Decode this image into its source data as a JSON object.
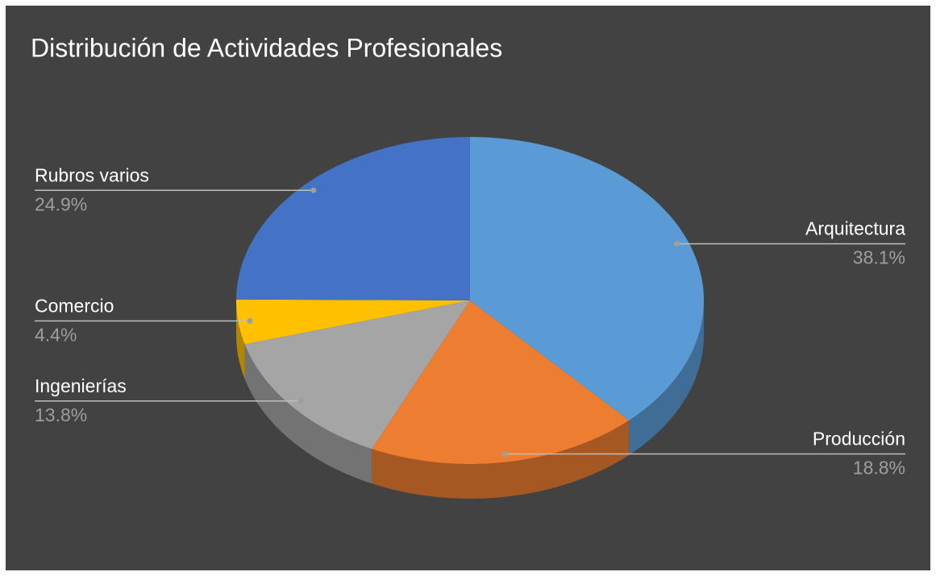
{
  "chart_data": {
    "type": "pie",
    "title": "Distribución de Actividades Profesionales",
    "categories": [
      "Arquitectura",
      "Producción",
      "Ingenierías",
      "Comercio",
      "Rubros varios"
    ],
    "values": [
      38.1,
      18.8,
      13.8,
      4.4,
      24.9
    ],
    "value_labels": [
      "38.1%",
      "18.8%",
      "13.8%",
      "4.4%",
      "24.9%"
    ],
    "colors": [
      "#5b9bd5",
      "#ed7d31",
      "#a5a5a5",
      "#ffc000",
      "#4472c4"
    ],
    "three_d": true
  }
}
